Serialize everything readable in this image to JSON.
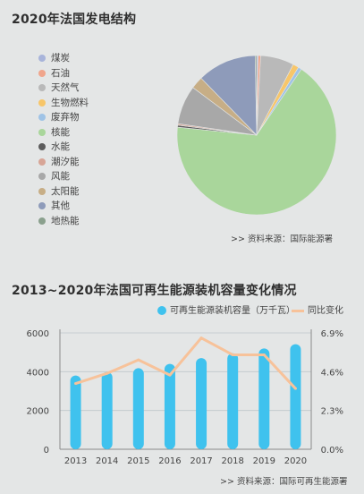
{
  "pie_title": "2020年法国发电结构",
  "pie_source": ">>  资料来源：国际能源署",
  "bar_title": "2013~2020年法国可再生能源装机容量变化情况",
  "bar_source": ">>  资料来源：国际可再生能源署",
  "chart_data": [
    {
      "type": "pie",
      "title": "2020年法国发电结构",
      "slices": [
        {
          "label": "煤炭",
          "value": 0.3,
          "color": "#a8b4da"
        },
        {
          "label": "石油",
          "value": 0.5,
          "color": "#f0a58c"
        },
        {
          "label": "天然气",
          "value": 6.8,
          "color": "#b9b9b9"
        },
        {
          "label": "生物燃料",
          "value": 1.2,
          "color": "#f7c66a"
        },
        {
          "label": "废弃物",
          "value": 0.7,
          "color": "#9fc3e6"
        },
        {
          "label": "核能",
          "value": 67.1,
          "color": "#a9d69b"
        },
        {
          "label": "水能",
          "value": 0.4,
          "color": "#5c5c5c"
        },
        {
          "label": "潮汐能",
          "value": 0.3,
          "color": "#d7a596"
        },
        {
          "label": "风能",
          "value": 7.9,
          "color": "#a8a8a8"
        },
        {
          "label": "太阳能",
          "value": 2.5,
          "color": "#c7ae86"
        },
        {
          "label": "其他",
          "value": 12.0,
          "color": "#8e9bba"
        },
        {
          "label": "地热能",
          "value": 0.3,
          "color": "#8aa08d"
        }
      ]
    },
    {
      "type": "bar+line",
      "title": "2013~2020年法国可再生能源装机容量变化情况",
      "categories": [
        "2013",
        "2014",
        "2015",
        "2016",
        "2017",
        "2018",
        "2019",
        "2020"
      ],
      "series": [
        {
          "name": "可再生能源装机容量（万千瓦）",
          "type": "bar",
          "axis": "left",
          "color": "#3fc2ee",
          "values": [
            3800,
            3980,
            4180,
            4400,
            4700,
            4950,
            5200,
            5420
          ]
        },
        {
          "name": "同比变化",
          "type": "line",
          "axis": "right",
          "color": "#f7c29a",
          "values": [
            3.9,
            4.5,
            5.3,
            4.4,
            6.6,
            5.6,
            5.6,
            3.6
          ]
        }
      ],
      "y_left": {
        "min": 0,
        "max": 6000,
        "ticks": [
          "0",
          "2000",
          "4000",
          "6000"
        ]
      },
      "y_right": {
        "min": 0,
        "max": 6.9,
        "ticks": [
          "0.0%",
          "2.3%",
          "4.6%",
          "6.9%"
        ]
      },
      "grid": true,
      "legend": "top"
    }
  ]
}
